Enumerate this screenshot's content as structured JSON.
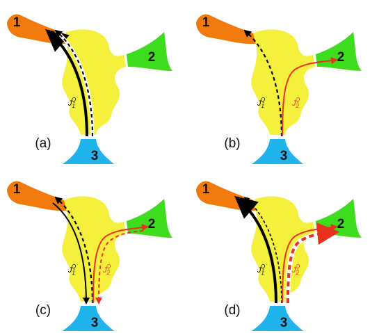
{
  "panels": [
    {
      "label": "(a)",
      "terminals": [
        "1",
        "2",
        "3"
      ],
      "currents": [
        {
          "symbol": "J",
          "sub": "1",
          "sup": "Q"
        }
      ]
    },
    {
      "label": "(b)",
      "terminals": [
        "1",
        "2",
        "3"
      ],
      "currents": [
        {
          "symbol": "J",
          "sub": "1",
          "sup": "Q"
        },
        {
          "symbol": "J",
          "sub": "2",
          "sup": "Q"
        }
      ]
    },
    {
      "label": "(c)",
      "terminals": [
        "1",
        "2",
        "3"
      ],
      "currents": [
        {
          "symbol": "J",
          "sub": "1",
          "sup": "Q"
        },
        {
          "symbol": "J",
          "sub": "2",
          "sup": "Q"
        }
      ]
    },
    {
      "label": "(d)",
      "terminals": [
        "1",
        "2",
        "3"
      ],
      "currents": [
        {
          "symbol": "J",
          "sub": "1",
          "sup": "Q"
        },
        {
          "symbol": "J",
          "sub": "2",
          "sup": "Q"
        }
      ]
    }
  ]
}
